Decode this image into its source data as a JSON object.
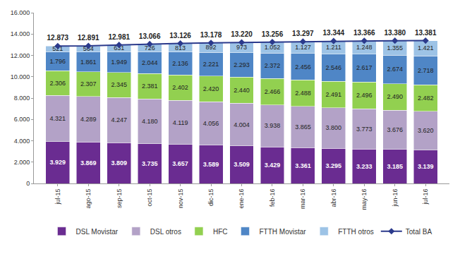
{
  "chart_data": {
    "type": "bar",
    "stacked": true,
    "data_labels": true,
    "grid": false,
    "legend": "bottom",
    "categories": [
      "jul-15",
      "ago-15",
      "sep-15",
      "oct-15",
      "nov-15",
      "dic-15",
      "ene-16",
      "feb-16",
      "mar-16",
      "abr-16",
      "may-16",
      "jun-16",
      "jul-16"
    ],
    "ylim": [
      0,
      16000
    ],
    "yticks": [
      0,
      {
        "value": 2000,
        "label": "2.000"
      },
      {
        "value": 4000,
        "label": "4.000"
      },
      {
        "value": 6000,
        "label": "6.000"
      },
      {
        "value": 8000,
        "label": "8.000"
      },
      {
        "value": 10000,
        "label": "10.000"
      },
      {
        "value": 12000,
        "label": "12.000"
      },
      {
        "value": 14000,
        "label": "14.000"
      },
      {
        "value": 16000,
        "label": "16.000"
      }
    ],
    "series": [
      {
        "name": "DSL Movistar",
        "type": "bar",
        "color": "#6a2c91",
        "values": [
          3929,
          3869,
          3809,
          3735,
          3657,
          3589,
          3509,
          3429,
          3361,
          3295,
          3233,
          3185,
          3139
        ],
        "value_labels": [
          "3.929",
          "3.869",
          "3.809",
          "3.735",
          "3.657",
          "3.589",
          "3.509",
          "3.429",
          "3.361",
          "3.295",
          "3.233",
          "3.185",
          "3.139"
        ]
      },
      {
        "name": "DSL otros",
        "type": "bar",
        "color": "#b3a2c7",
        "values": [
          4321,
          4289,
          4247,
          4180,
          4119,
          4056,
          4004,
          3938,
          3865,
          3800,
          3773,
          3676,
          3620
        ],
        "value_labels": [
          "4.321",
          "4.289",
          "4.247",
          "4.180",
          "4.119",
          "4.056",
          "4.004",
          "3.938",
          "3.865",
          "3.800",
          "3.773",
          "3.676",
          "3.620"
        ]
      },
      {
        "name": "HFC",
        "type": "bar",
        "color": "#92d050",
        "values": [
          2306,
          2307,
          2345,
          2381,
          2402,
          2420,
          2440,
          2466,
          2488,
          2491,
          2496,
          2490,
          2482
        ],
        "value_labels": [
          "2.306",
          "2.307",
          "2.345",
          "2.381",
          "2.402",
          "2.420",
          "2.440",
          "2.466",
          "2.488",
          "2.491",
          "2.496",
          "2.490",
          "2.482"
        ]
      },
      {
        "name": "FTTH Movistar",
        "type": "bar",
        "color": "#4f86c6",
        "values": [
          1796,
          1861,
          1949,
          2044,
          2136,
          2221,
          2293,
          2372,
          2456,
          2546,
          2617,
          2674,
          2718
        ],
        "value_labels": [
          "1.796",
          "1.861",
          "1.949",
          "2.044",
          "2.136",
          "2.221",
          "2.293",
          "2.372",
          "2.456",
          "2.546",
          "2.617",
          "2.674",
          "2.718"
        ]
      },
      {
        "name": "FTTH otros",
        "type": "bar",
        "color": "#9dc3e6",
        "values": [
          521,
          564,
          631,
          726,
          813,
          892,
          973,
          1052,
          1127,
          1211,
          1248,
          1355,
          1421
        ],
        "value_labels": [
          "521",
          "564",
          "631",
          "726",
          "813",
          "892",
          "973",
          "1.052",
          "1.127",
          "1.211",
          "1.248",
          "1.355",
          "1.421"
        ]
      },
      {
        "name": "Total BA",
        "type": "line",
        "color": "#2b3a8c",
        "marker": "diamond",
        "values": [
          12873,
          12891,
          12981,
          13066,
          13126,
          13178,
          13220,
          13256,
          13297,
          13344,
          13366,
          13380,
          13381
        ],
        "value_labels": [
          "12.873",
          "12.891",
          "12.981",
          "13.066",
          "13.126",
          "13.178",
          "13.220",
          "13.256",
          "13.297",
          "13.344",
          "13.366",
          "13.380",
          "13.381"
        ]
      }
    ]
  }
}
